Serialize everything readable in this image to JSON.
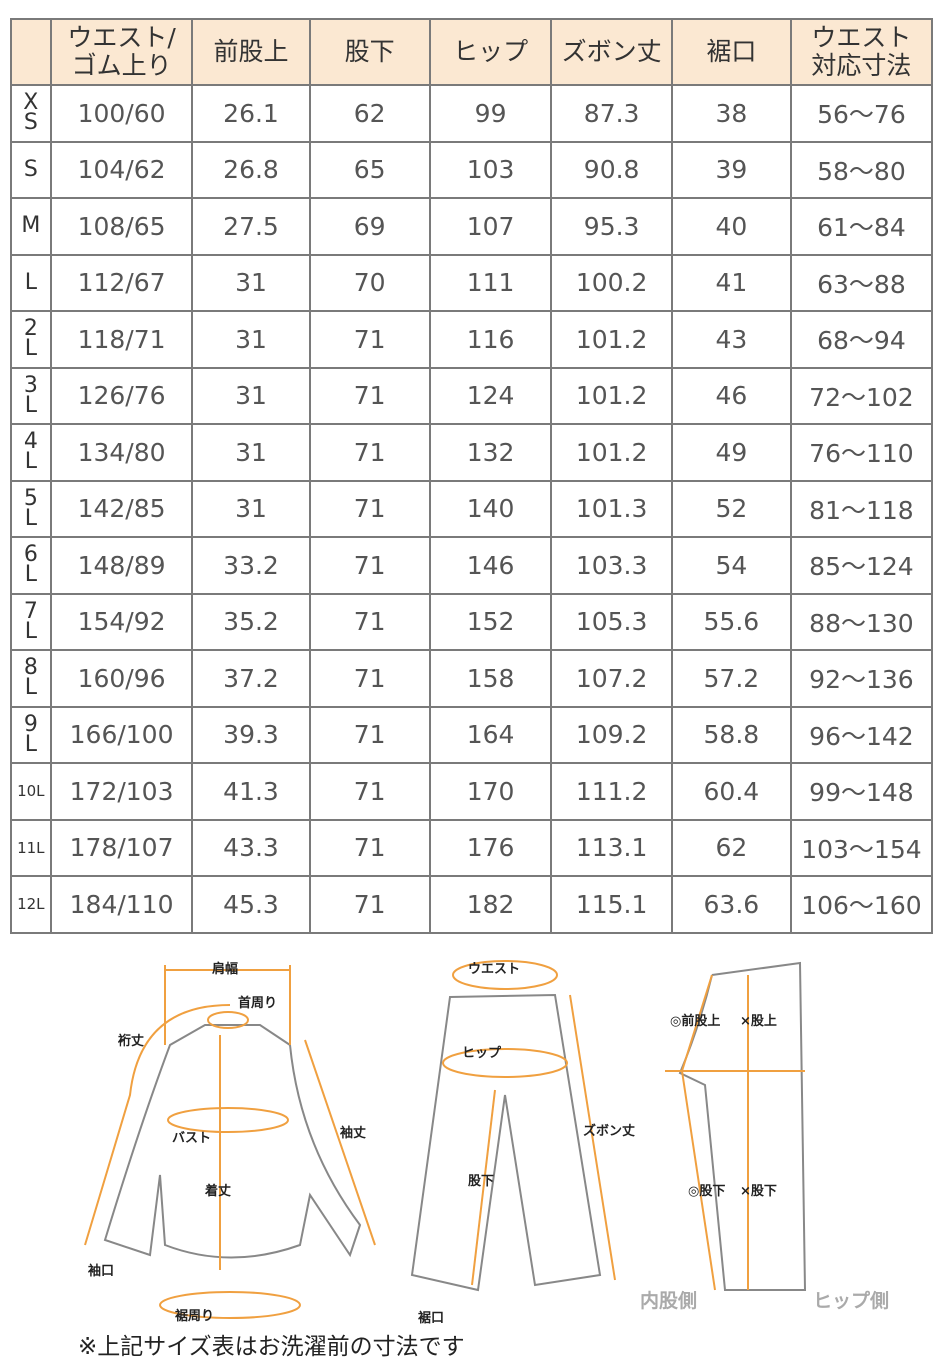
{
  "table": {
    "headers": [
      "",
      "ウエスト/\nゴム上り",
      "前股上",
      "股下",
      "ヒップ",
      "ズボン丈",
      "裾口",
      "ウエスト\n対応寸法"
    ],
    "rows": [
      [
        "XS",
        "100/60",
        "26.1",
        "62",
        "99",
        "87.3",
        "38",
        "56～76"
      ],
      [
        "S",
        "104/62",
        "26.8",
        "65",
        "103",
        "90.8",
        "39",
        "58～80"
      ],
      [
        "M",
        "108/65",
        "27.5",
        "69",
        "107",
        "95.3",
        "40",
        "61～84"
      ],
      [
        "L",
        "112/67",
        "31",
        "70",
        "111",
        "100.2",
        "41",
        "63～88"
      ],
      [
        "2L",
        "118/71",
        "31",
        "71",
        "116",
        "101.2",
        "43",
        "68～94"
      ],
      [
        "3L",
        "126/76",
        "31",
        "71",
        "124",
        "101.2",
        "46",
        "72～102"
      ],
      [
        "4L",
        "134/80",
        "31",
        "71",
        "132",
        "101.2",
        "49",
        "76～110"
      ],
      [
        "5L",
        "142/85",
        "31",
        "71",
        "140",
        "101.3",
        "52",
        "81～118"
      ],
      [
        "6L",
        "148/89",
        "33.2",
        "71",
        "146",
        "103.3",
        "54",
        "85～124"
      ],
      [
        "7L",
        "154/92",
        "35.2",
        "71",
        "152",
        "105.3",
        "55.6",
        "88～130"
      ],
      [
        "8L",
        "160/96",
        "37.2",
        "71",
        "158",
        "107.2",
        "57.2",
        "92～136"
      ],
      [
        "9L",
        "166/100",
        "39.3",
        "71",
        "164",
        "109.2",
        "58.8",
        "96～142"
      ],
      [
        "10L",
        "172/103",
        "41.3",
        "71",
        "170",
        "111.2",
        "60.4",
        "99～148"
      ],
      [
        "11L",
        "178/107",
        "43.3",
        "71",
        "176",
        "113.1",
        "62",
        "103～154"
      ],
      [
        "12L",
        "184/110",
        "45.3",
        "71",
        "182",
        "115.1",
        "63.6",
        "106～160"
      ]
    ]
  },
  "diagram": {
    "shirt": {
      "shoulder": "肩幅",
      "neck": "首周り",
      "yuki": "裄丈",
      "bust": "バスト",
      "sleeve": "袖丈",
      "length": "着丈",
      "cuff": "袖口",
      "hem": "裾周り"
    },
    "pants": {
      "waist": "ウエスト",
      "hip": "ヒップ",
      "inseam": "股下",
      "length": "ズボン丈",
      "hem": "裾口"
    },
    "side": {
      "good_rise": "◎前股上",
      "bad_rise": "×股上",
      "good_inseam": "◎股下",
      "bad_inseam": "×股下",
      "inner": "内股側",
      "hip_side": "ヒップ側"
    },
    "accent": "#f0a040"
  },
  "note": "※上記サイズ表はお洗濯前の寸法です"
}
